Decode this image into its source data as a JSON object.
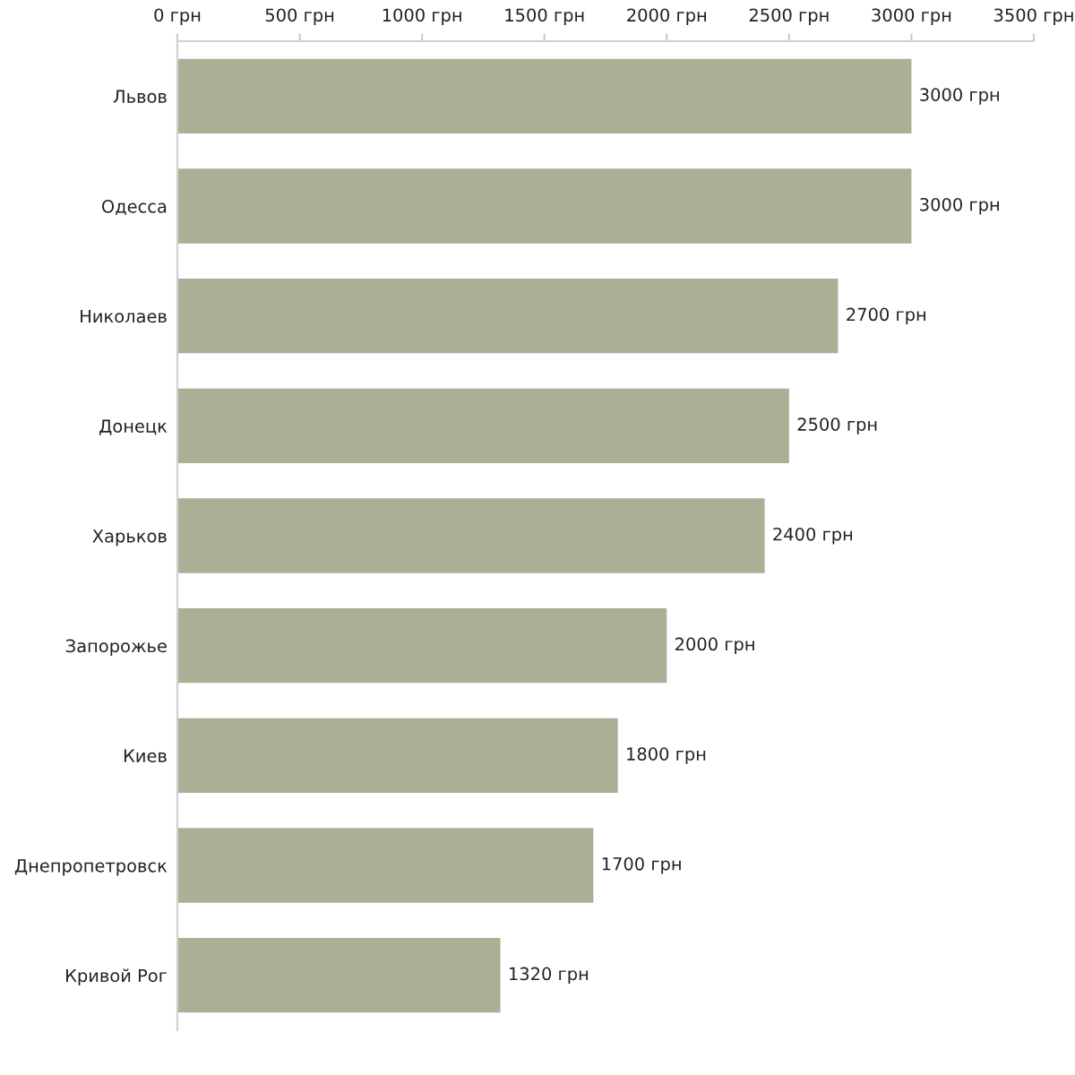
{
  "chart_data": {
    "type": "bar",
    "orientation": "horizontal",
    "categories": [
      "Львов",
      "Одесса",
      "Николаев",
      "Донецк",
      "Харьков",
      "Запорожье",
      "Киев",
      "Днепропетровск",
      "Кривой Рог"
    ],
    "values": [
      3000,
      3000,
      2700,
      2500,
      2400,
      2000,
      1800,
      1700,
      1320
    ],
    "value_labels": [
      "3000 грн",
      "3000 грн",
      "2700 грн",
      "2500 грн",
      "2400 грн",
      "2000 грн",
      "1800 грн",
      "1700 грн",
      "1320 грн"
    ],
    "color": "#a9b095",
    "xlim": [
      0,
      3500
    ],
    "xticks": [
      {
        "value": 0,
        "label": "0 грн"
      },
      {
        "value": 500,
        "label": "500 грн"
      },
      {
        "value": 1000,
        "label": "1000 грн"
      },
      {
        "value": 1500,
        "label": "1500 грн"
      },
      {
        "value": 2000,
        "label": "2000 грн"
      },
      {
        "value": 2500,
        "label": "2500 грн"
      },
      {
        "value": 3000,
        "label": "3000 грн"
      },
      {
        "value": 3500,
        "label": "3500 грн"
      }
    ],
    "grid": false
  }
}
